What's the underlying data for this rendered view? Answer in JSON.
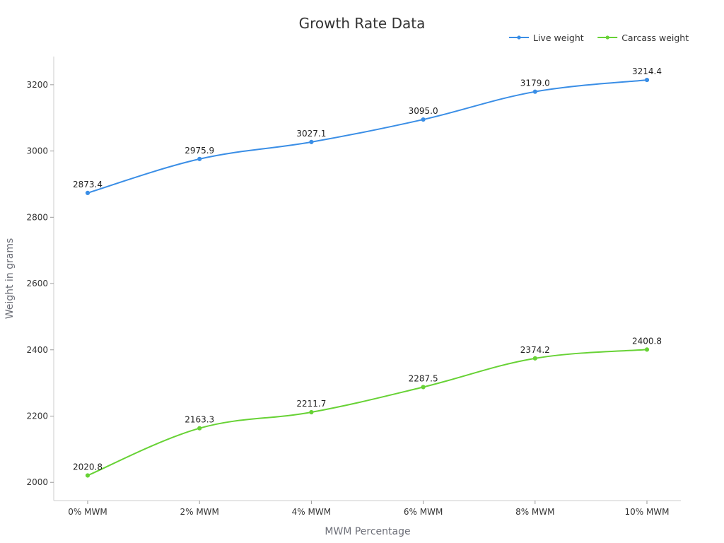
{
  "chart_data": {
    "type": "line",
    "title": "Growth Rate Data",
    "xlabel": "MWM Percentage",
    "ylabel": "Weight in grams",
    "categories": [
      "0% MWM",
      "2% MWM",
      "4% MWM",
      "6% MWM",
      "8% MWM",
      "10% MWM"
    ],
    "ylim": [
      1945,
      3285
    ],
    "yticks": [
      2000,
      2200,
      2400,
      2600,
      2800,
      3000,
      3200
    ],
    "grid": false,
    "legend_position": "top-right",
    "series": [
      {
        "name": "Live weight",
        "color": "#3a8ee6",
        "values": [
          2873.4,
          2975.9,
          3027.1,
          3095.0,
          3179.0,
          3214.4
        ],
        "labels": [
          "2873.4",
          "2975.9",
          "3027.1",
          "3095.0",
          "3179.0",
          "3214.4"
        ]
      },
      {
        "name": "Carcass weight",
        "color": "#67d235",
        "values": [
          2020.8,
          2163.3,
          2211.7,
          2287.5,
          2374.2,
          2400.8
        ],
        "labels": [
          "2020.8",
          "2163.3",
          "2211.7",
          "2287.5",
          "2374.2",
          "2400.8"
        ]
      }
    ]
  }
}
